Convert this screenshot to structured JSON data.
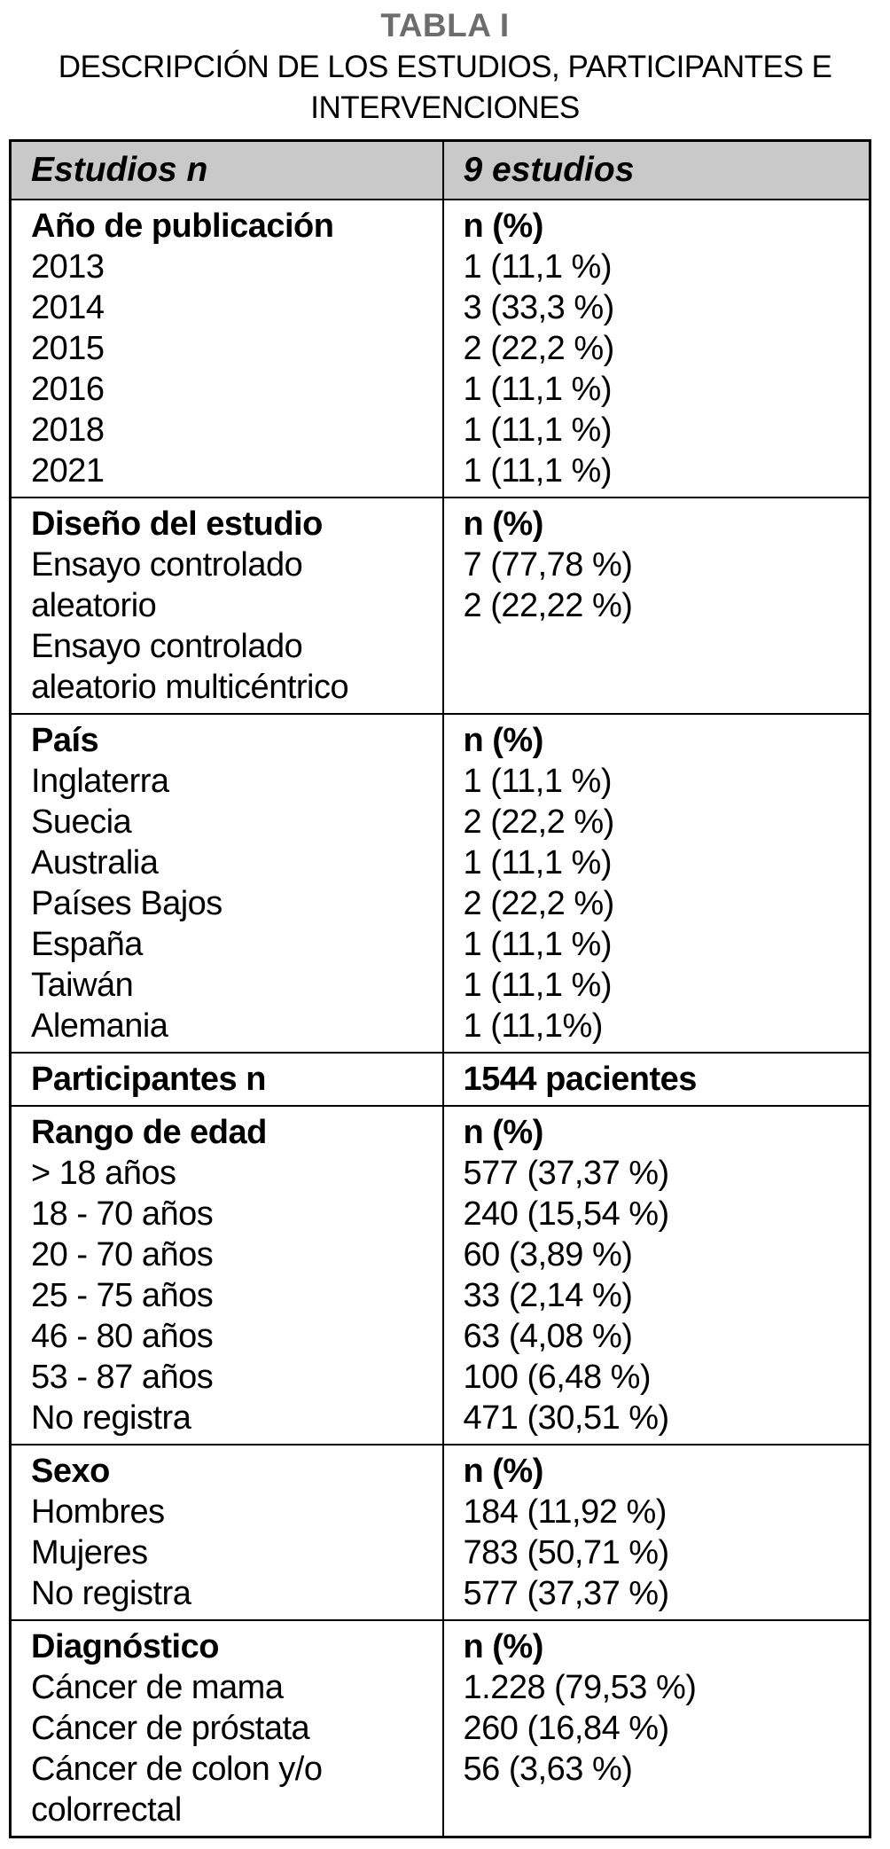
{
  "title": "TABLA I",
  "subtitle": "DESCRIPCIÓN DE LOS ESTUDIOS, PARTICIPANTES E INTERVENCIONES",
  "colors": {
    "header_bg": "#c9c9c9",
    "title_gray": "#6d6d6d",
    "border": "#000000"
  },
  "table": {
    "header": {
      "left": "Estudios n",
      "right": "9 estudios"
    },
    "sections": [
      {
        "label": "Año de publicación",
        "value_header": "n (%)",
        "rows": [
          {
            "label": "2013",
            "value": "1 (11,1 %)"
          },
          {
            "label": "2014",
            "value": "3 (33,3 %)"
          },
          {
            "label": "2015",
            "value": "2 (22,2 %)"
          },
          {
            "label": "2016",
            "value": "1 (11,1 %)"
          },
          {
            "label": "2018",
            "value": "1 (11,1 %)"
          },
          {
            "label": "2021",
            "value": "1 (11,1 %)"
          }
        ]
      },
      {
        "label": "Diseño del estudio",
        "value_header": "n (%)",
        "rows": [
          {
            "label": "Ensayo controlado aleatorio",
            "value": "7 (77,78 %)"
          },
          {
            "label": "Ensayo controlado aleatorio multicéntrico",
            "value": "2 (22,22 %)"
          }
        ]
      },
      {
        "label": "País",
        "value_header": "n (%)",
        "rows": [
          {
            "label": "Inglaterra",
            "value": "1 (11,1 %)"
          },
          {
            "label": "Suecia",
            "value": "2 (22,2 %)"
          },
          {
            "label": "Australia",
            "value": "1 (11,1 %)"
          },
          {
            "label": "Países Bajos",
            "value": "2 (22,2 %)"
          },
          {
            "label": "España",
            "value": "1 (11,1 %)"
          },
          {
            "label": "Taiwán",
            "value": "1 (11,1 %)"
          },
          {
            "label": "Alemania",
            "value": "1 (11,1%)"
          }
        ]
      },
      {
        "label": "Participantes n",
        "value_header": "1544 pacientes",
        "rows": []
      },
      {
        "label": "Rango de edad",
        "value_header": "n (%)",
        "rows": [
          {
            "label": "> 18 años",
            "value": "577 (37,37 %)"
          },
          {
            "label": "18 - 70 años",
            "value": "240 (15,54 %)"
          },
          {
            "label": "20 - 70 años",
            "value": "60 (3,89 %)"
          },
          {
            "label": "25 - 75 años",
            "value": "33 (2,14 %)"
          },
          {
            "label": "46 - 80 años",
            "value": "63 (4,08 %)"
          },
          {
            "label": "53 - 87 años",
            "value": "100 (6,48 %)"
          },
          {
            "label": "No registra",
            "value": "471 (30,51 %)"
          }
        ]
      },
      {
        "label": "Sexo",
        "value_header": "n (%)",
        "rows": [
          {
            "label": "Hombres",
            "value": "184 (11,92 %)"
          },
          {
            "label": "Mujeres",
            "value": "783 (50,71 %)"
          },
          {
            "label": "No registra",
            "value": "577 (37,37 %)"
          }
        ]
      },
      {
        "label": "Diagnóstico",
        "value_header": "n (%)",
        "rows": [
          {
            "label": "Cáncer de mama",
            "value": "1.228 (79,53 %)"
          },
          {
            "label": "Cáncer de próstata",
            "value": "260 (16,84 %)"
          },
          {
            "label": "Cáncer de colon y/o colorrectal",
            "value": "56 (3,63 %)"
          }
        ]
      }
    ]
  }
}
